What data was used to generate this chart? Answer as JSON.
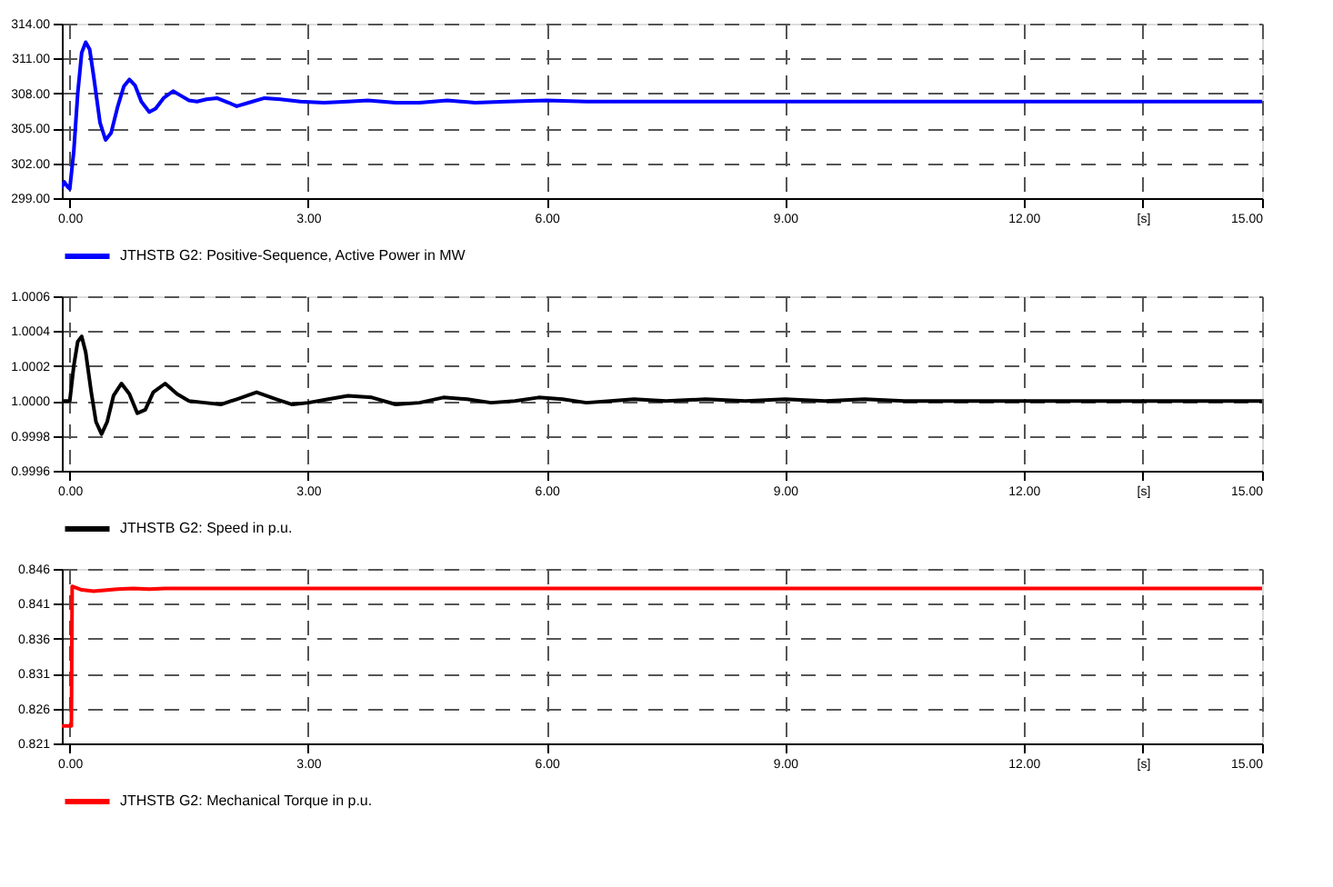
{
  "chart_data": [
    {
      "type": "line",
      "legend": "bottom left",
      "grid": true,
      "line_style": "solid",
      "marker": "none",
      "x": [
        -0.1,
        -0.07,
        -0.03,
        0.0,
        0.05,
        0.1,
        0.15,
        0.2,
        0.25,
        0.3,
        0.38,
        0.45,
        0.52,
        0.6,
        0.68,
        0.75,
        0.82,
        0.9,
        1.0,
        1.08,
        1.18,
        1.3,
        1.4,
        1.5,
        1.6,
        1.72,
        1.85,
        2.0,
        2.1,
        2.25,
        2.45,
        2.65,
        2.9,
        3.2,
        3.5,
        3.75,
        4.1,
        4.4,
        4.75,
        5.1,
        5.5,
        6.0,
        6.5,
        7.0,
        8.0,
        9.0,
        10.0,
        11.0,
        12.0,
        13.0,
        14.0,
        15.0
      ],
      "series": [
        {
          "name": "JTHSTB G2: Positive-Sequence, Active Power in MW",
          "color": "#0000ff",
          "values": [
            299.9,
            300.4,
            300.0,
            299.8,
            303,
            308,
            311.5,
            312.4,
            311.8,
            309.5,
            305.5,
            304.0,
            304.6,
            306.8,
            308.6,
            309.2,
            308.7,
            307.3,
            306.4,
            306.7,
            307.6,
            308.2,
            307.8,
            307.4,
            307.3,
            307.5,
            307.6,
            307.2,
            306.9,
            307.2,
            307.6,
            307.5,
            307.3,
            307.2,
            307.3,
            307.4,
            307.2,
            307.2,
            307.4,
            307.2,
            307.3,
            307.4,
            307.3,
            307.3,
            307.3,
            307.3,
            307.3,
            307.3,
            307.3,
            307.3,
            307.3,
            307.3
          ]
        }
      ],
      "xlim": [
        -0.1,
        15
      ],
      "xticks": [
        {
          "value": 0,
          "label": "0.00"
        },
        {
          "value": 3,
          "label": "3.00"
        },
        {
          "value": 6,
          "label": "6.00"
        },
        {
          "value": 9,
          "label": "9.00"
        },
        {
          "value": 12,
          "label": "12.00"
        },
        {
          "value": 13.5,
          "label": "[s]"
        },
        {
          "value": 15,
          "label": "15.00"
        }
      ],
      "ylim": [
        299,
        314
      ],
      "yticks": [
        {
          "value": 299,
          "label": "299.00"
        },
        {
          "value": 302,
          "label": "302.00"
        },
        {
          "value": 305,
          "label": "305.00"
        },
        {
          "value": 308,
          "label": "308.00"
        },
        {
          "value": 311,
          "label": "311.00"
        },
        {
          "value": 314,
          "label": "314.00"
        }
      ]
    },
    {
      "type": "line",
      "legend": "bottom left",
      "grid": true,
      "line_style": "solid",
      "marker": "none",
      "x": [
        -0.1,
        0.0,
        0.05,
        0.1,
        0.15,
        0.2,
        0.27,
        0.33,
        0.4,
        0.47,
        0.55,
        0.65,
        0.75,
        0.85,
        0.95,
        1.05,
        1.2,
        1.35,
        1.5,
        1.7,
        1.9,
        2.1,
        2.35,
        2.6,
        2.8,
        3.0,
        3.25,
        3.5,
        3.8,
        4.1,
        4.4,
        4.7,
        5.0,
        5.3,
        5.6,
        5.9,
        6.2,
        6.5,
        6.8,
        7.1,
        7.5,
        8.0,
        8.5,
        9.0,
        9.5,
        10.0,
        10.5,
        11.0,
        12.0,
        13.0,
        14.0,
        15.0
      ],
      "series": [
        {
          "name": "JTHSTB G2: Speed in p.u.",
          "color": "#000000",
          "values": [
            1.0,
            1.0,
            1.0002,
            1.00034,
            1.00037,
            1.00028,
            1.00005,
            0.99988,
            0.99981,
            0.99988,
            1.00003,
            1.0001,
            1.00004,
            0.99993,
            0.99995,
            1.00005,
            1.0001,
            1.00004,
            1.0,
            0.99999,
            0.99998,
            1.00001,
            1.00005,
            1.00001,
            0.99998,
            0.99999,
            1.00001,
            1.00003,
            1.00002,
            0.99998,
            0.99999,
            1.00002,
            1.00001,
            0.99999,
            1.0,
            1.00002,
            1.00001,
            0.99999,
            1.0,
            1.00001,
            1.0,
            1.00001,
            1.0,
            1.00001,
            1.0,
            1.00001,
            1.0,
            1.0,
            1.0,
            1.0,
            1.0,
            1.0
          ]
        }
      ],
      "xlim": [
        -0.1,
        15
      ],
      "xticks": [
        {
          "value": 0,
          "label": "0.00"
        },
        {
          "value": 3,
          "label": "3.00"
        },
        {
          "value": 6,
          "label": "6.00"
        },
        {
          "value": 9,
          "label": "9.00"
        },
        {
          "value": 12,
          "label": "12.00"
        },
        {
          "value": 13.5,
          "label": "[s]"
        },
        {
          "value": 15,
          "label": "15.00"
        }
      ],
      "ylim": [
        0.9996,
        1.0006
      ],
      "yticks": [
        {
          "value": 0.9996,
          "label": "0.9996"
        },
        {
          "value": 0.9998,
          "label": "0.9998"
        },
        {
          "value": 1.0,
          "label": "1.0000"
        },
        {
          "value": 1.0002,
          "label": "1.0002"
        },
        {
          "value": 1.0004,
          "label": "1.0004"
        },
        {
          "value": 1.0006,
          "label": "1.0006"
        }
      ]
    },
    {
      "type": "line",
      "legend": "bottom left",
      "grid": true,
      "line_style": "solid",
      "marker": "none",
      "x": [
        -0.1,
        0.02,
        0.03,
        0.15,
        0.3,
        0.6,
        0.8,
        1.0,
        1.2,
        2.0,
        4.0,
        6.0,
        8.0,
        10.0,
        12.0,
        15.0
      ],
      "series": [
        {
          "name": "JTHSTB G2: Mechanical Torque in p.u.",
          "color": "#ff0000",
          "values": [
            0.8235,
            0.8235,
            0.8435,
            0.843,
            0.8428,
            0.8431,
            0.8432,
            0.8431,
            0.8432,
            0.8432,
            0.8432,
            0.8432,
            0.8432,
            0.8432,
            0.8432,
            0.8432
          ]
        }
      ],
      "xlim": [
        -0.1,
        15
      ],
      "xticks": [
        {
          "value": 0,
          "label": "0.00"
        },
        {
          "value": 3,
          "label": "3.00"
        },
        {
          "value": 6,
          "label": "6.00"
        },
        {
          "value": 9,
          "label": "9.00"
        },
        {
          "value": 12,
          "label": "12.00"
        },
        {
          "value": 13.5,
          "label": "[s]"
        },
        {
          "value": 15,
          "label": "15.00"
        }
      ],
      "ylim": [
        0.821,
        0.846
      ],
      "yticks": [
        {
          "value": 0.821,
          "label": "0.821"
        },
        {
          "value": 0.826,
          "label": "0.826"
        },
        {
          "value": 0.831,
          "label": "0.831"
        },
        {
          "value": 0.836,
          "label": "0.836"
        },
        {
          "value": 0.841,
          "label": "0.841"
        },
        {
          "value": 0.846,
          "label": "0.846"
        }
      ]
    }
  ]
}
